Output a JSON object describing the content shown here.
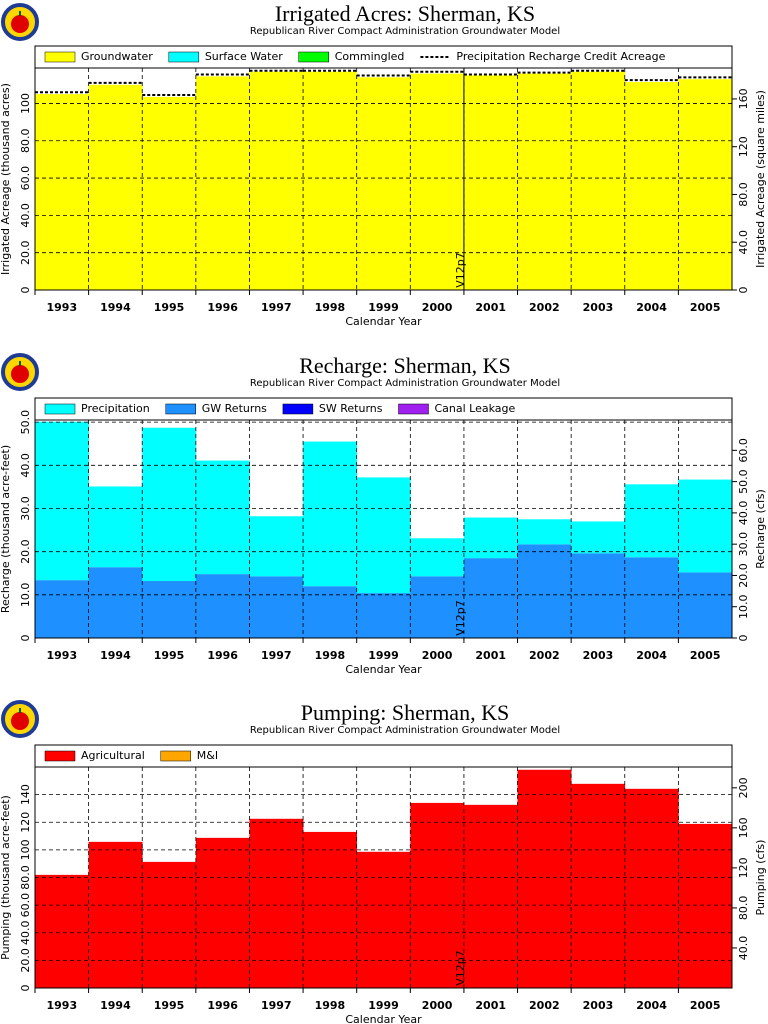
{
  "chart_data": [
    {
      "type": "bar",
      "stacked": true,
      "title": "Irrigated Acres: Sherman, KS",
      "subtitle": "Republican River Compact Administration Groundwater Model",
      "x_label": "Calendar Year",
      "y_label": "Irrigated Acreage (thousand acres)",
      "y2_label": "Irrigated Acreage (square miles)",
      "annotation": "V12p7",
      "categories": [
        "1993",
        "1994",
        "1995",
        "1996",
        "1997",
        "1998",
        "1999",
        "2000",
        "2001",
        "2002",
        "2003",
        "2004",
        "2005"
      ],
      "series": [
        {
          "name": "Groundwater",
          "color": "#ffff00",
          "values": [
            105,
            110,
            103.5,
            114.5,
            117,
            117,
            114,
            116,
            115,
            116,
            117,
            111.5,
            113
          ]
        },
        {
          "name": "Surface Water",
          "color": "#00ffff",
          "values": [
            0,
            0,
            0,
            0,
            0,
            0,
            0,
            0,
            0,
            0,
            0,
            0,
            0
          ]
        },
        {
          "name": "Commingled",
          "color": "#00ff00",
          "values": [
            0,
            0,
            0,
            0,
            0,
            0,
            0,
            0,
            0,
            0,
            0,
            0,
            0
          ]
        },
        {
          "name": "Precipitation Recharge Credit Acreage",
          "type": "line",
          "color": "#000000",
          "values": [
            106,
            111,
            104.5,
            115.5,
            117.5,
            117.5,
            115,
            117,
            115.5,
            116.5,
            117.5,
            112.5,
            114
          ]
        }
      ],
      "ylim": [
        0,
        119
      ],
      "yticks": [
        0,
        {
          "value": 20,
          "label": "20.0"
        },
        {
          "value": 40,
          "label": "40.0"
        },
        {
          "value": 60,
          "label": "60.0"
        },
        {
          "value": 80,
          "label": "80.0"
        },
        100
      ],
      "y2lim": [
        0,
        185.9
      ],
      "y2ticks": [
        0,
        {
          "value": 40,
          "label": "40.0"
        },
        {
          "value": 80,
          "label": "80.0"
        },
        120,
        160
      ],
      "grid": true
    },
    {
      "type": "bar",
      "stacked": true,
      "stack_order": "reverse",
      "title": "Recharge: Sherman, KS",
      "subtitle": "Republican River Compact Administration Groundwater Model",
      "x_label": "Calendar Year",
      "y_label": "Recharge (thousand acre-feet)",
      "y2_label": "Recharge (cfs)",
      "annotation": "V12p7",
      "categories": [
        "1993",
        "1994",
        "1995",
        "1996",
        "1997",
        "1998",
        "1999",
        "2000",
        "2001",
        "2002",
        "2003",
        "2004",
        "2005"
      ],
      "series": [
        {
          "name": "Precipitation",
          "color": "#00ffff",
          "values": [
            36.7,
            18.7,
            35.5,
            26.3,
            13.9,
            33.5,
            26.8,
            8.8,
            9.4,
            5.8,
            7.4,
            16.9,
            21.5
          ]
        },
        {
          "name": "GW Returns",
          "color": "#1e90ff",
          "values": [
            13.4,
            16.4,
            13.2,
            14.8,
            14.3,
            12.0,
            10.4,
            14.3,
            18.5,
            21.7,
            19.6,
            18.7,
            15.2
          ]
        },
        {
          "name": "SW Returns",
          "color": "#0000ff",
          "values": [
            0,
            0,
            0,
            0,
            0,
            0,
            0,
            0,
            0,
            0,
            0,
            0,
            0
          ]
        },
        {
          "name": "Canal Leakage",
          "color": "#a020f0",
          "values": [
            0,
            0,
            0,
            0,
            0,
            0,
            0,
            0,
            0,
            0,
            0,
            0,
            0
          ]
        }
      ],
      "ylim": [
        0,
        50.5
      ],
      "yticks": [
        0,
        {
          "value": 10,
          "label": "10.0"
        },
        {
          "value": 20,
          "label": "20.0"
        },
        {
          "value": 30,
          "label": "30.0"
        },
        {
          "value": 40,
          "label": "40.0"
        },
        {
          "value": 50,
          "label": "50.0"
        }
      ],
      "y2lim": [
        0,
        69.7
      ],
      "y2ticks": [
        0,
        {
          "value": 10,
          "label": "10.0"
        },
        {
          "value": 20,
          "label": "20.0"
        },
        {
          "value": 30,
          "label": "30.0"
        },
        {
          "value": 40,
          "label": "40.0"
        },
        {
          "value": 50,
          "label": "50.0"
        },
        {
          "value": 60,
          "label": "60.0"
        }
      ],
      "grid": true
    },
    {
      "type": "bar",
      "stacked": true,
      "title": "Pumping: Sherman, KS",
      "subtitle": "Republican River Compact Administration Groundwater Model",
      "x_label": "Calendar Year",
      "y_label": "Pumping (thousand acre-feet)",
      "y2_label": "Pumping (cfs)",
      "annotation": "V12p7",
      "categories": [
        "1993",
        "1994",
        "1995",
        "1996",
        "1997",
        "1998",
        "1999",
        "2000",
        "2001",
        "2002",
        "2003",
        "2004",
        "2005"
      ],
      "series": [
        {
          "name": "Agricultural",
          "color": "#ff0000",
          "values": [
            81.9,
            105.8,
            91.3,
            108.7,
            122.5,
            113,
            98.6,
            134,
            132.6,
            158,
            147.8,
            144.2,
            118.8
          ]
        },
        {
          "name": "M&I",
          "color": "#ffa500",
          "values": [
            0,
            0,
            0,
            0,
            0,
            0,
            0,
            0,
            0,
            0,
            0,
            0,
            0
          ]
        }
      ],
      "ylim": [
        0,
        160
      ],
      "yticks": [
        0,
        {
          "value": 20,
          "label": "20.0"
        },
        {
          "value": 40,
          "label": "40.0"
        },
        {
          "value": 60,
          "label": "60.0"
        },
        {
          "value": 80,
          "label": "80.0"
        },
        100,
        120,
        140
      ],
      "y2lim": [
        0,
        220.8
      ],
      "y2ticks": [
        {
          "value": 40,
          "label": "40.0"
        },
        {
          "value": 80,
          "label": "80.0"
        },
        120,
        160,
        200
      ],
      "grid": true
    }
  ]
}
